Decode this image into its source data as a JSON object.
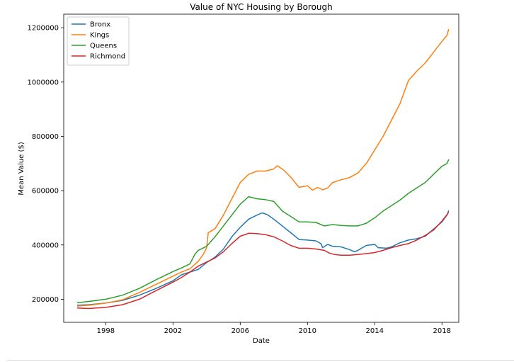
{
  "chart_data": {
    "type": "line",
    "title": "Value of NYC Housing by Borough",
    "xlabel": "Date",
    "ylabel": "Mean Value ($)",
    "xlim": [
      1995.5,
      2019.0
    ],
    "ylim": [
      115000,
      1250000
    ],
    "xticks": [
      1998,
      2002,
      2006,
      2010,
      2014,
      2018
    ],
    "xtick_labels": [
      "1998",
      "2002",
      "2006",
      "2010",
      "2014",
      "2018"
    ],
    "yticks": [
      200000,
      400000,
      600000,
      800000,
      1000000,
      1200000
    ],
    "ytick_labels": [
      "200000",
      "400000",
      "600000",
      "800000",
      "1000000",
      "1200000"
    ],
    "grid": false,
    "legend_position": "top-left",
    "series": [
      {
        "name": "Bronx",
        "color": "#1f77b4",
        "points": [
          [
            1996.3,
            178000
          ],
          [
            1997.0,
            180000
          ],
          [
            1998.0,
            186000
          ],
          [
            1999.0,
            196000
          ],
          [
            2000.0,
            215000
          ],
          [
            2001.0,
            240000
          ],
          [
            2002.0,
            268000
          ],
          [
            2002.5,
            290000
          ],
          [
            2003.0,
            300000
          ],
          [
            2003.5,
            310000
          ],
          [
            2004.0,
            335000
          ],
          [
            2004.5,
            355000
          ],
          [
            2005.0,
            385000
          ],
          [
            2005.5,
            430000
          ],
          [
            2006.0,
            465000
          ],
          [
            2006.5,
            495000
          ],
          [
            2007.0,
            510000
          ],
          [
            2007.3,
            518000
          ],
          [
            2007.6,
            512000
          ],
          [
            2008.0,
            495000
          ],
          [
            2008.5,
            470000
          ],
          [
            2009.0,
            445000
          ],
          [
            2009.5,
            420000
          ],
          [
            2010.0,
            418000
          ],
          [
            2010.5,
            415000
          ],
          [
            2010.8,
            405000
          ],
          [
            2010.9,
            390000
          ],
          [
            2011.2,
            402000
          ],
          [
            2011.5,
            395000
          ],
          [
            2012.0,
            393000
          ],
          [
            2012.5,
            383000
          ],
          [
            2012.8,
            375000
          ],
          [
            2013.0,
            380000
          ],
          [
            2013.5,
            398000
          ],
          [
            2014.0,
            402000
          ],
          [
            2014.2,
            390000
          ],
          [
            2014.7,
            388000
          ],
          [
            2015.0,
            393000
          ],
          [
            2015.5,
            408000
          ],
          [
            2016.0,
            418000
          ],
          [
            2016.5,
            423000
          ],
          [
            2017.0,
            432000
          ],
          [
            2017.5,
            458000
          ],
          [
            2018.0,
            485000
          ],
          [
            2018.3,
            510000
          ],
          [
            2018.4,
            527000
          ]
        ]
      },
      {
        "name": "Kings",
        "color": "#ff7f0e",
        "points": [
          [
            1996.3,
            175000
          ],
          [
            1997.0,
            178000
          ],
          [
            1998.0,
            186000
          ],
          [
            1999.0,
            198000
          ],
          [
            2000.0,
            225000
          ],
          [
            2001.0,
            255000
          ],
          [
            2002.0,
            285000
          ],
          [
            2002.5,
            300000
          ],
          [
            2003.0,
            312000
          ],
          [
            2003.5,
            340000
          ],
          [
            2003.8,
            365000
          ],
          [
            2004.0,
            390000
          ],
          [
            2004.1,
            445000
          ],
          [
            2004.5,
            460000
          ],
          [
            2005.0,
            510000
          ],
          [
            2005.5,
            570000
          ],
          [
            2006.0,
            630000
          ],
          [
            2006.5,
            660000
          ],
          [
            2007.0,
            672000
          ],
          [
            2007.5,
            672000
          ],
          [
            2008.0,
            680000
          ],
          [
            2008.2,
            692000
          ],
          [
            2008.6,
            675000
          ],
          [
            2009.0,
            650000
          ],
          [
            2009.5,
            612000
          ],
          [
            2010.0,
            618000
          ],
          [
            2010.3,
            602000
          ],
          [
            2010.6,
            612000
          ],
          [
            2010.9,
            603000
          ],
          [
            2011.2,
            610000
          ],
          [
            2011.5,
            630000
          ],
          [
            2012.0,
            640000
          ],
          [
            2012.5,
            648000
          ],
          [
            2013.0,
            665000
          ],
          [
            2013.5,
            700000
          ],
          [
            2014.0,
            750000
          ],
          [
            2014.5,
            800000
          ],
          [
            2015.0,
            860000
          ],
          [
            2015.5,
            920000
          ],
          [
            2016.0,
            1005000
          ],
          [
            2016.5,
            1040000
          ],
          [
            2017.0,
            1070000
          ],
          [
            2017.5,
            1110000
          ],
          [
            2018.0,
            1150000
          ],
          [
            2018.3,
            1172000
          ],
          [
            2018.4,
            1195000
          ]
        ]
      },
      {
        "name": "Queens",
        "color": "#2ca02c",
        "points": [
          [
            1996.3,
            187000
          ],
          [
            1997.0,
            192000
          ],
          [
            1998.0,
            200000
          ],
          [
            1999.0,
            215000
          ],
          [
            2000.0,
            240000
          ],
          [
            2001.0,
            272000
          ],
          [
            2002.0,
            302000
          ],
          [
            2002.5,
            315000
          ],
          [
            2003.0,
            330000
          ],
          [
            2003.3,
            365000
          ],
          [
            2003.5,
            380000
          ],
          [
            2004.0,
            395000
          ],
          [
            2004.5,
            430000
          ],
          [
            2005.0,
            470000
          ],
          [
            2005.5,
            510000
          ],
          [
            2006.0,
            550000
          ],
          [
            2006.5,
            578000
          ],
          [
            2007.0,
            570000
          ],
          [
            2007.5,
            567000
          ],
          [
            2008.0,
            560000
          ],
          [
            2008.5,
            525000
          ],
          [
            2009.0,
            505000
          ],
          [
            2009.5,
            485000
          ],
          [
            2010.0,
            485000
          ],
          [
            2010.5,
            483000
          ],
          [
            2011.0,
            470000
          ],
          [
            2011.5,
            475000
          ],
          [
            2012.0,
            472000
          ],
          [
            2012.5,
            470000
          ],
          [
            2013.0,
            470000
          ],
          [
            2013.5,
            480000
          ],
          [
            2014.0,
            500000
          ],
          [
            2014.5,
            525000
          ],
          [
            2015.0,
            545000
          ],
          [
            2015.5,
            565000
          ],
          [
            2016.0,
            590000
          ],
          [
            2016.5,
            610000
          ],
          [
            2017.0,
            630000
          ],
          [
            2017.5,
            660000
          ],
          [
            2018.0,
            690000
          ],
          [
            2018.3,
            700000
          ],
          [
            2018.4,
            715000
          ]
        ]
      },
      {
        "name": "Richmond",
        "color": "#d62728",
        "points": [
          [
            1996.3,
            168000
          ],
          [
            1997.0,
            166000
          ],
          [
            1998.0,
            170000
          ],
          [
            1999.0,
            180000
          ],
          [
            2000.0,
            200000
          ],
          [
            2001.0,
            232000
          ],
          [
            2002.0,
            263000
          ],
          [
            2002.5,
            280000
          ],
          [
            2003.0,
            300000
          ],
          [
            2003.5,
            322000
          ],
          [
            2004.0,
            337000
          ],
          [
            2004.5,
            352000
          ],
          [
            2005.0,
            375000
          ],
          [
            2005.5,
            405000
          ],
          [
            2006.0,
            432000
          ],
          [
            2006.5,
            443000
          ],
          [
            2007.0,
            442000
          ],
          [
            2007.5,
            438000
          ],
          [
            2008.0,
            430000
          ],
          [
            2008.5,
            415000
          ],
          [
            2009.0,
            398000
          ],
          [
            2009.5,
            388000
          ],
          [
            2010.0,
            388000
          ],
          [
            2010.5,
            385000
          ],
          [
            2011.0,
            380000
          ],
          [
            2011.3,
            370000
          ],
          [
            2011.6,
            365000
          ],
          [
            2012.0,
            362000
          ],
          [
            2012.5,
            362000
          ],
          [
            2013.0,
            365000
          ],
          [
            2013.5,
            368000
          ],
          [
            2014.0,
            372000
          ],
          [
            2014.5,
            380000
          ],
          [
            2015.0,
            390000
          ],
          [
            2015.5,
            398000
          ],
          [
            2016.0,
            405000
          ],
          [
            2016.5,
            418000
          ],
          [
            2017.0,
            435000
          ],
          [
            2017.5,
            455000
          ],
          [
            2018.0,
            488000
          ],
          [
            2018.4,
            520000
          ]
        ]
      }
    ]
  }
}
